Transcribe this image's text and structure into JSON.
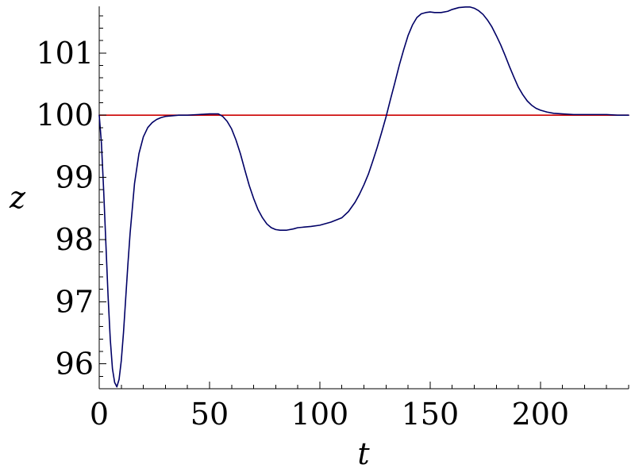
{
  "chart_data": {
    "type": "line",
    "title": "",
    "xlabel": "t",
    "ylabel": "z",
    "xlim": [
      0,
      240
    ],
    "ylim": [
      95.6,
      101.75
    ],
    "grid": false,
    "x_ticks": [
      0,
      50,
      100,
      150,
      200
    ],
    "x_tick_labels": [
      "0",
      "50",
      "100",
      "150",
      "200"
    ],
    "y_ticks": [
      96,
      97,
      98,
      99,
      100,
      101
    ],
    "y_tick_labels": [
      "96",
      "97",
      "98",
      "99",
      "100",
      "101"
    ],
    "x_minor_step": 10,
    "y_minor_step": 0.2,
    "series": [
      {
        "color": "#cc0000",
        "x": [
          0,
          240
        ],
        "y": [
          100,
          100
        ]
      },
      {
        "color": "#000066",
        "x": [
          0,
          1,
          2,
          3,
          4,
          5,
          6,
          7,
          8,
          9,
          10,
          11,
          12,
          13,
          14,
          16,
          18,
          20,
          22,
          24,
          26,
          28,
          30,
          33,
          36,
          40,
          45,
          50,
          54,
          56,
          58,
          60,
          62,
          64,
          66,
          68,
          70,
          72,
          74,
          76,
          78,
          80,
          82,
          85,
          88,
          90,
          93,
          96,
          100,
          105,
          110,
          113,
          116,
          118,
          120,
          122,
          124,
          126,
          128,
          130,
          132,
          134,
          136,
          138,
          140,
          142,
          144,
          146,
          148,
          150,
          152,
          155,
          158,
          160,
          163,
          166,
          168,
          170,
          172,
          174,
          176,
          178,
          180,
          182,
          184,
          186,
          188,
          190,
          192,
          194,
          196,
          198,
          200,
          203,
          206,
          210,
          215,
          220,
          225,
          230,
          235,
          240
        ],
        "y": [
          100.0,
          99.55,
          98.8,
          97.95,
          97.1,
          96.4,
          95.92,
          95.7,
          95.63,
          95.75,
          96.05,
          96.5,
          97.05,
          97.6,
          98.1,
          98.9,
          99.38,
          99.65,
          99.8,
          99.88,
          99.93,
          99.96,
          99.98,
          99.99,
          100.0,
          100.0,
          100.01,
          100.02,
          100.02,
          99.98,
          99.9,
          99.78,
          99.6,
          99.38,
          99.12,
          98.87,
          98.66,
          98.48,
          98.35,
          98.25,
          98.19,
          98.16,
          98.15,
          98.15,
          98.17,
          98.19,
          98.2,
          98.21,
          98.23,
          98.28,
          98.35,
          98.45,
          98.6,
          98.73,
          98.88,
          99.05,
          99.26,
          99.48,
          99.72,
          99.97,
          100.25,
          100.52,
          100.8,
          101.05,
          101.28,
          101.45,
          101.57,
          101.63,
          101.65,
          101.66,
          101.65,
          101.65,
          101.67,
          101.7,
          101.73,
          101.74,
          101.74,
          101.72,
          101.68,
          101.62,
          101.53,
          101.42,
          101.28,
          101.13,
          100.96,
          100.78,
          100.61,
          100.45,
          100.33,
          100.23,
          100.16,
          100.11,
          100.08,
          100.05,
          100.03,
          100.02,
          100.01,
          100.01,
          100.01,
          100.01,
          100.0,
          100.0
        ]
      }
    ]
  }
}
